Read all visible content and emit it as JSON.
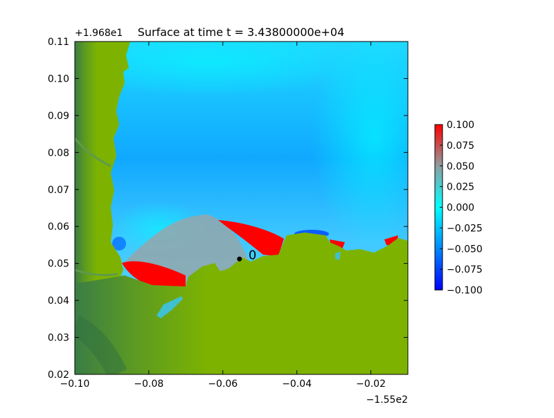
{
  "chart_data": {
    "type": "heatmap",
    "title": "Surface at time t = 3.43800000e+04",
    "xlabel": "",
    "ylabel": "",
    "x_offset_label": "−1.55e2",
    "y_offset_label": "+1.968e1",
    "xlim": [
      -0.1,
      -0.01
    ],
    "ylim": [
      0.02,
      0.11
    ],
    "x_ticks": [
      -0.1,
      -0.08,
      -0.06,
      -0.04,
      -0.02
    ],
    "x_tick_labels": [
      "−0.10",
      "−0.08",
      "−0.06",
      "−0.04",
      "−0.02"
    ],
    "y_ticks": [
      0.02,
      0.03,
      0.04,
      0.05,
      0.06,
      0.07,
      0.08,
      0.09,
      0.1,
      0.11
    ],
    "y_tick_labels": [
      "0.02",
      "0.03",
      "0.04",
      "0.05",
      "0.06",
      "0.07",
      "0.08",
      "0.09",
      "0.10",
      "0.11"
    ],
    "colorbar": {
      "range": [
        -0.1,
        0.1
      ],
      "ticks": [
        0.1,
        0.075,
        0.05,
        0.025,
        0.0,
        -0.025,
        -0.05,
        -0.075,
        -0.1
      ],
      "tick_labels": [
        "0.100",
        "0.075",
        "0.050",
        "0.025",
        "0.000",
        "−0.025",
        "−0.050",
        "−0.075",
        "−0.100"
      ],
      "colors": {
        "low": "#0000ff",
        "mid_low": "#00aaff",
        "zero": "#00ffff",
        "mid_high": "#8f9ea0",
        "high": "#ff0000"
      }
    },
    "land_colors": {
      "dark": "#3a7d45",
      "light": "#7db300"
    },
    "gauge": {
      "label": "0",
      "x": -0.0555,
      "y": 0.0512
    },
    "grid": false,
    "legend": "colorbar right"
  }
}
